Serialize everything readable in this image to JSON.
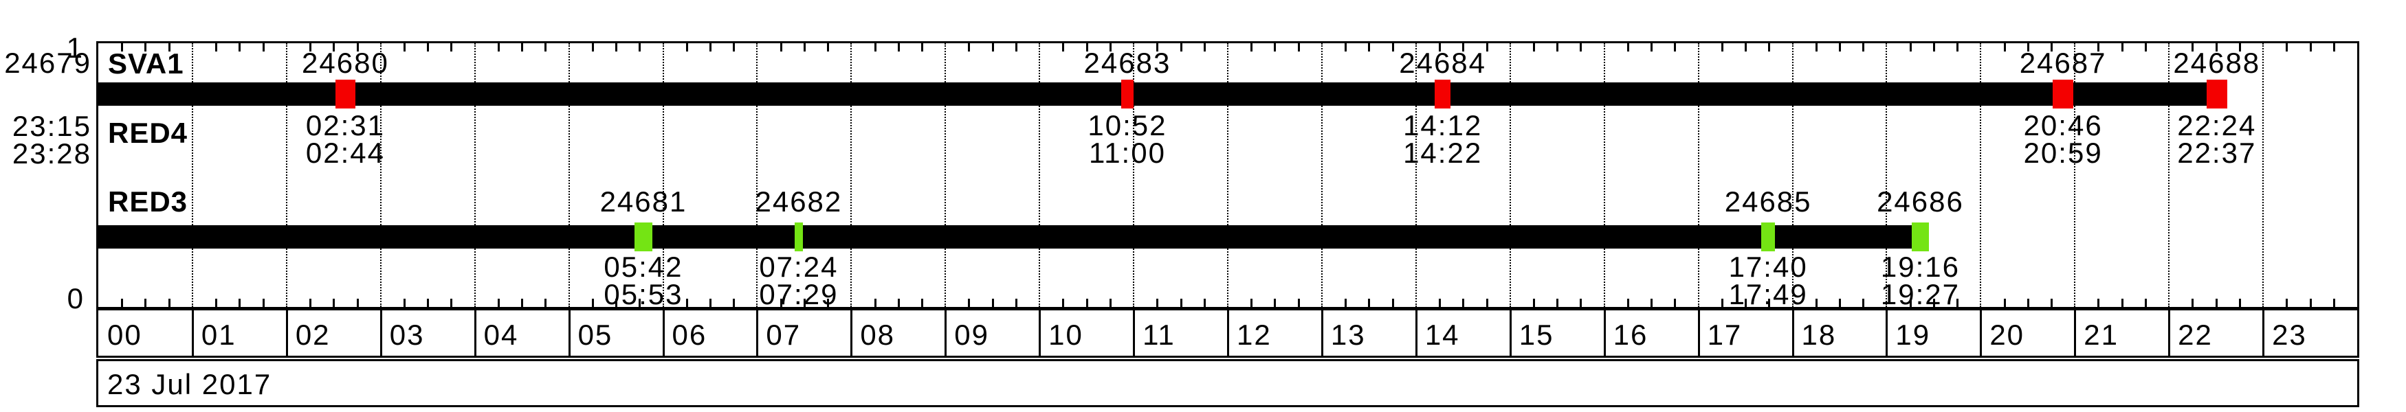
{
  "chart_data": {
    "type": "timeline",
    "date": "23 Jul 2017",
    "x_axis": {
      "unit": "hours",
      "range_hours": [
        0,
        24
      ],
      "tick_labels": [
        "00",
        "01",
        "02",
        "03",
        "04",
        "05",
        "06",
        "07",
        "08",
        "09",
        "10",
        "11",
        "12",
        "13",
        "14",
        "15",
        "16",
        "17",
        "18",
        "19",
        "20",
        "21",
        "22",
        "23"
      ],
      "minor_tick_minutes": 15,
      "gridlines": "hourly-dotted"
    },
    "y_axis": {
      "top": "1",
      "bottom": "0"
    },
    "prev_day_pass": {
      "rev": "24679",
      "aos": "23:15",
      "los": "23:28"
    },
    "rows": [
      {
        "labels": [
          "SVA1",
          "RED4"
        ],
        "bar": {
          "start": "00:00",
          "end": "22:37"
        },
        "bar_color": "#000000",
        "marker_color": "#f40000",
        "passes": [
          {
            "rev": "24680",
            "aos": "02:31",
            "los": "02:44"
          },
          {
            "rev": "24683",
            "aos": "10:52",
            "los": "11:00"
          },
          {
            "rev": "24684",
            "aos": "14:12",
            "los": "14:22"
          },
          {
            "rev": "24687",
            "aos": "20:46",
            "los": "20:59"
          },
          {
            "rev": "24688",
            "aos": "22:24",
            "los": "22:37"
          }
        ]
      },
      {
        "labels": [
          "RED3"
        ],
        "bar": {
          "start": "00:00",
          "end": "19:27"
        },
        "bar_color": "#000000",
        "marker_color": "#74e414",
        "passes": [
          {
            "rev": "24681",
            "aos": "05:42",
            "los": "05:53"
          },
          {
            "rev": "24682",
            "aos": "07:24",
            "los": "07:29"
          },
          {
            "rev": "24685",
            "aos": "17:40",
            "los": "17:49"
          },
          {
            "rev": "24686",
            "aos": "19:16",
            "los": "19:27"
          }
        ]
      }
    ],
    "colors": {
      "background": "#ffffff",
      "bar": "#000000",
      "grid": "#000000"
    }
  }
}
